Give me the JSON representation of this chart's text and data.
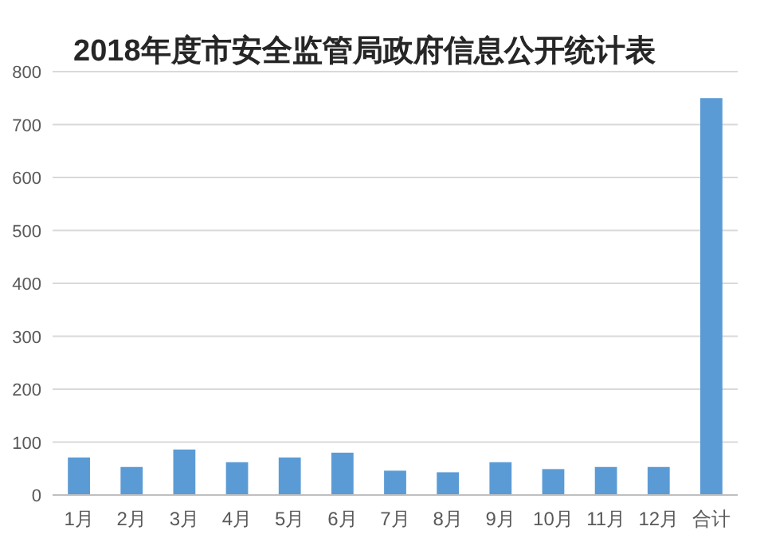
{
  "chart_data": {
    "type": "bar",
    "title": "2018年度市安全监管局政府信息公开统计表",
    "categories": [
      "1月",
      "2月",
      "3月",
      "4月",
      "5月",
      "6月",
      "7月",
      "8月",
      "9月",
      "10月",
      "11月",
      "12月",
      "合计"
    ],
    "values": [
      71,
      53,
      86,
      62,
      71,
      80,
      46,
      43,
      62,
      49,
      53,
      53,
      750
    ],
    "color": "#5b9bd5",
    "ylim": [
      0,
      800
    ],
    "yticks": [
      0,
      100,
      200,
      300,
      400,
      500,
      600,
      700,
      800
    ],
    "grid": "y"
  }
}
